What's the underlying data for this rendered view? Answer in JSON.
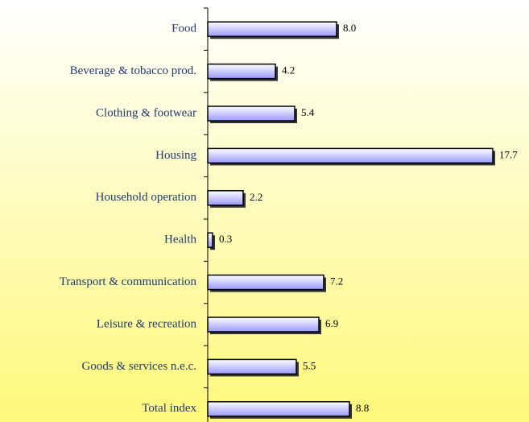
{
  "chart_data": {
    "type": "bar",
    "orientation": "horizontal",
    "categories": [
      "Food",
      "Beverage & tobacco prod.",
      "Clothing & footwear",
      "Housing",
      "Household operation",
      "Health",
      "Transport & communication",
      "Leisure & recreation",
      "Goods & services n.e.c.",
      "Total index"
    ],
    "values": [
      8.0,
      4.2,
      5.4,
      17.7,
      2.2,
      0.3,
      7.2,
      6.9,
      5.5,
      8.8
    ],
    "value_labels": [
      "8.0",
      "4.2",
      "5.4",
      "17.7",
      "2.2",
      "0.3",
      "7.2",
      "6.9",
      "5.5",
      "8.8"
    ],
    "color": "#9999ff"
  }
}
